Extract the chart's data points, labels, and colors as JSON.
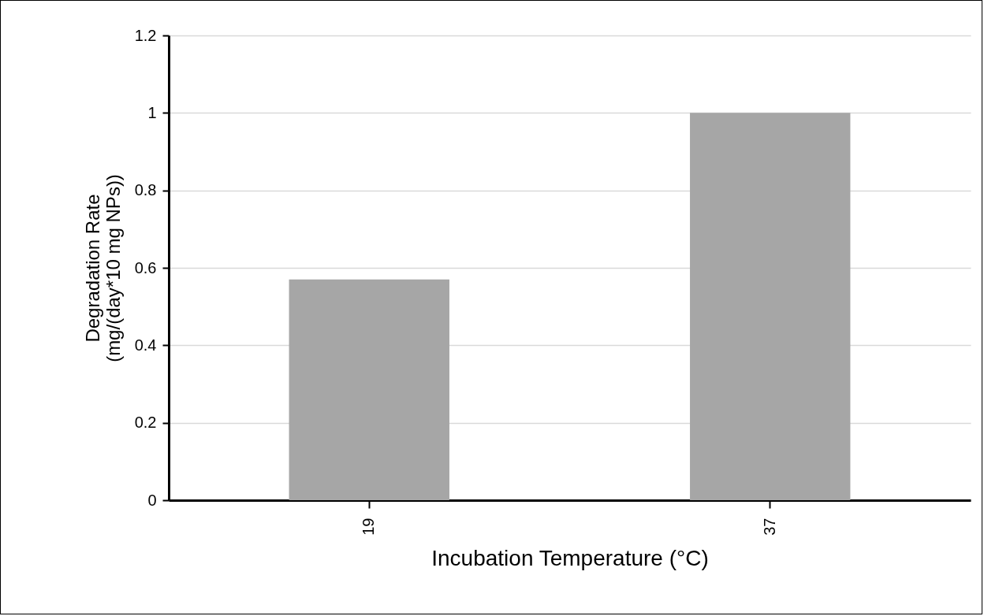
{
  "chart_data": {
    "type": "bar",
    "xlabel": "Incubation Temperature (°C)",
    "ylabel": "Degradation Rate\n(mg/(day*10 mg NPs))",
    "categories": [
      "19",
      "37"
    ],
    "values": [
      0.57,
      1.0
    ],
    "color": "#a6a6a6",
    "ylim": [
      0,
      1.2
    ],
    "yticks": [
      0,
      0.2,
      0.4,
      0.6,
      0.8,
      1,
      1.2
    ],
    "grid": "y"
  }
}
